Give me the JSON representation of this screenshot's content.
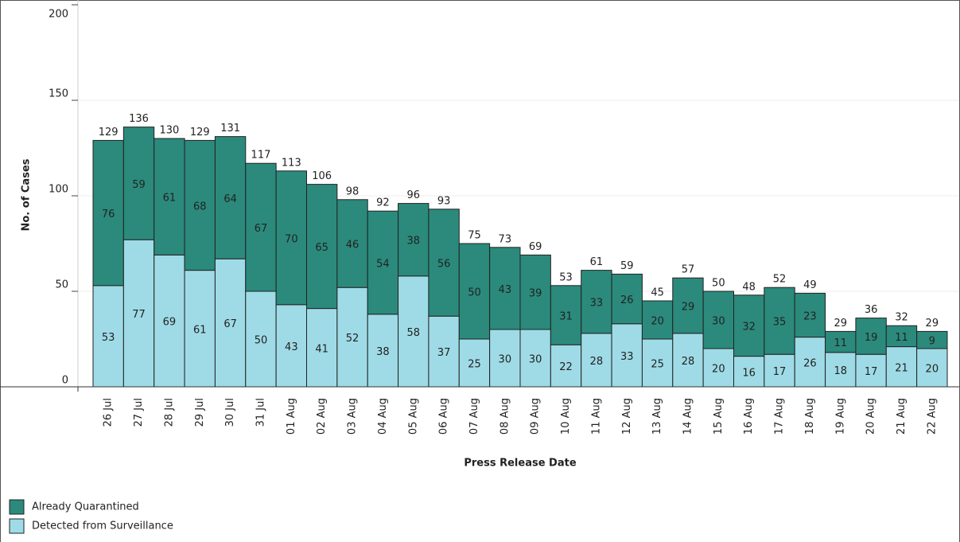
{
  "chart_data": {
    "type": "stacked_bar",
    "x_label": "Press Release Date",
    "y_label": "No. of Cases",
    "categories": [
      "26 Jul",
      "27 Jul",
      "28 Jul",
      "29 Jul",
      "30 Jul",
      "31 Jul",
      "01 Aug",
      "02 Aug",
      "03 Aug",
      "04 Aug",
      "05 Aug",
      "06 Aug",
      "07 Aug",
      "08 Aug",
      "09 Aug",
      "10 Aug",
      "11 Aug",
      "12 Aug",
      "13 Aug",
      "14 Aug",
      "15 Aug",
      "16 Aug",
      "17 Aug",
      "18 Aug",
      "19 Aug",
      "20 Aug",
      "21 Aug",
      "22 Aug"
    ],
    "series": [
      {
        "name": "Already Quarantined",
        "color": "#2b8a7c",
        "values": [
          76,
          59,
          61,
          68,
          64,
          67,
          70,
          65,
          46,
          54,
          38,
          56,
          50,
          43,
          39,
          31,
          33,
          26,
          20,
          29,
          30,
          32,
          35,
          23,
          11,
          19,
          11,
          9
        ]
      },
      {
        "name": "Detected from Surveillance",
        "color": "#9edbe6",
        "values": [
          53,
          77,
          69,
          61,
          67,
          50,
          43,
          41,
          52,
          38,
          58,
          37,
          25,
          30,
          30,
          22,
          28,
          33,
          25,
          28,
          20,
          16,
          17,
          26,
          18,
          17,
          21,
          20
        ]
      }
    ],
    "totals": [
      129,
      136,
      130,
      129,
      131,
      117,
      113,
      106,
      98,
      92,
      96,
      93,
      75,
      73,
      69,
      53,
      61,
      59,
      45,
      57,
      50,
      48,
      52,
      49,
      29,
      36,
      32,
      29
    ],
    "ylim": [
      0,
      200
    ],
    "yticks": [
      0,
      50,
      100,
      150,
      200
    ],
    "grid": true
  }
}
